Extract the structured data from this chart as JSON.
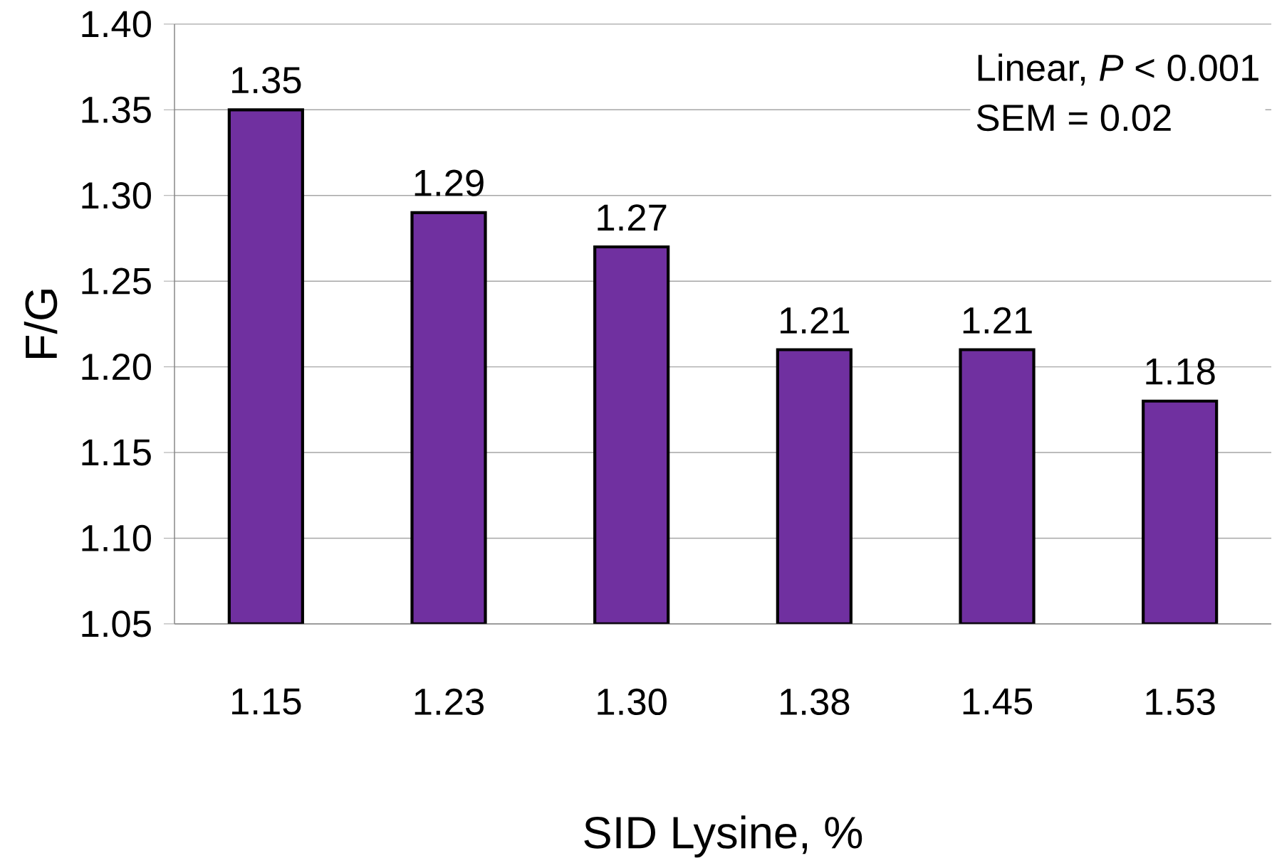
{
  "chart_data": {
    "type": "bar",
    "xlabel": "SID Lysine, %",
    "ylabel": "F/G",
    "categories": [
      "1.15",
      "1.23",
      "1.30",
      "1.38",
      "1.45",
      "1.53"
    ],
    "values": [
      1.35,
      1.29,
      1.27,
      1.21,
      1.21,
      1.18
    ],
    "color": "#7030a0",
    "ylim": [
      1.05,
      1.4
    ],
    "yticks": [
      1.05,
      {
        "value": 1.1,
        "label": "1.10"
      },
      1.15,
      {
        "value": 1.2,
        "label": "1.20"
      },
      1.25,
      {
        "value": 1.3,
        "label": "1.30"
      },
      1.35,
      {
        "value": 1.4,
        "label": "1.40"
      }
    ],
    "grid": "y",
    "data_labels": true,
    "annotations": [
      "Linear, *P* < 0.001",
      "SEM = 0.02"
    ]
  }
}
